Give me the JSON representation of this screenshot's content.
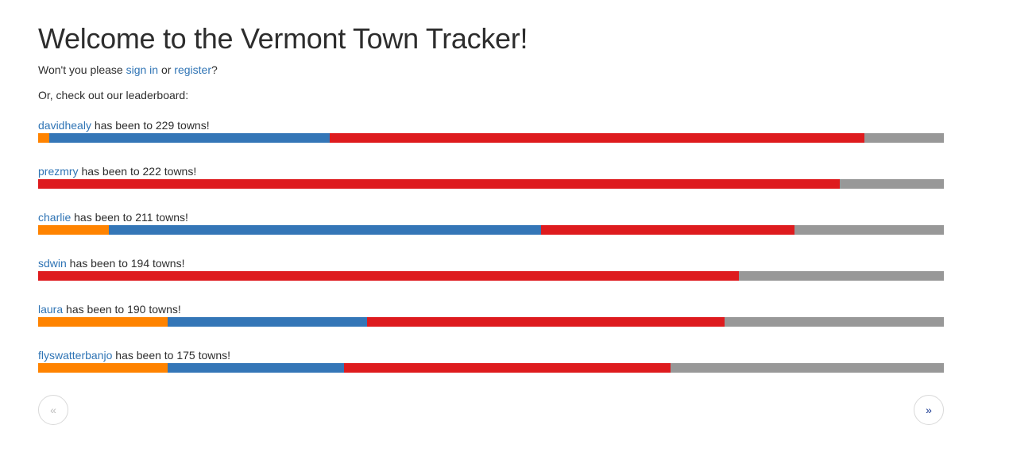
{
  "colors": {
    "orange": "#ff8300",
    "blue": "#3476b7",
    "red": "#de1b1e",
    "gray": "#989898",
    "link": "#2f74b5",
    "text": "#2d2d2d"
  },
  "header": {
    "title": "Welcome to the Vermont Town Tracker!",
    "prompt_prefix": "Won't you please ",
    "signin_label": "sign in",
    "prompt_mid": " or ",
    "register_label": "register",
    "prompt_suffix": "?",
    "leaderboard_intro": "Or, check out our leaderboard:"
  },
  "phrase": {
    "mid": " has been to ",
    "suffix": " towns!"
  },
  "leaderboard": [
    {
      "user": "davidhealy",
      "count": "229",
      "segments": [
        {
          "color": "#ff8300",
          "pct": 1.2
        },
        {
          "color": "#3476b7",
          "pct": 31.0
        },
        {
          "color": "#de1b1e",
          "pct": 59.0
        },
        {
          "color": "#989898",
          "pct": 8.8
        }
      ]
    },
    {
      "user": "prezmry",
      "count": "222",
      "segments": [
        {
          "color": "#de1b1e",
          "pct": 88.5
        },
        {
          "color": "#989898",
          "pct": 11.5
        }
      ]
    },
    {
      "user": "charlie",
      "count": "211",
      "segments": [
        {
          "color": "#ff8300",
          "pct": 7.8
        },
        {
          "color": "#3476b7",
          "pct": 47.7
        },
        {
          "color": "#de1b1e",
          "pct": 28.0
        },
        {
          "color": "#989898",
          "pct": 16.5
        }
      ]
    },
    {
      "user": "sdwin",
      "count": "194",
      "segments": [
        {
          "color": "#de1b1e",
          "pct": 77.4
        },
        {
          "color": "#989898",
          "pct": 22.6
        }
      ]
    },
    {
      "user": "laura",
      "count": "190",
      "segments": [
        {
          "color": "#ff8300",
          "pct": 14.3
        },
        {
          "color": "#3476b7",
          "pct": 22.0
        },
        {
          "color": "#de1b1e",
          "pct": 39.5
        },
        {
          "color": "#989898",
          "pct": 24.2
        }
      ]
    },
    {
      "user": "flyswatterbanjo",
      "count": "175",
      "segments": [
        {
          "color": "#ff8300",
          "pct": 14.3
        },
        {
          "color": "#3476b7",
          "pct": 19.5
        },
        {
          "color": "#de1b1e",
          "pct": 36.0
        },
        {
          "color": "#989898",
          "pct": 30.2
        }
      ]
    }
  ],
  "pager": {
    "prev": "«",
    "next": "»",
    "prev_enabled": false,
    "next_enabled": true
  }
}
